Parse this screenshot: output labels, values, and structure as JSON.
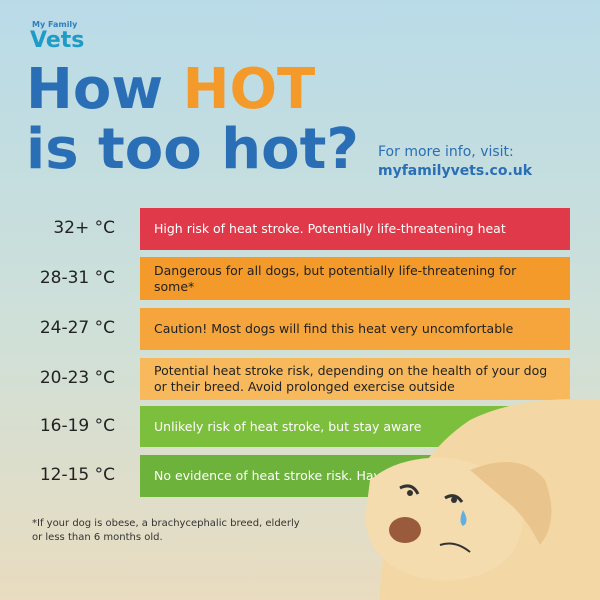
{
  "brand": {
    "small": "My Family",
    "name": "Vets"
  },
  "title": {
    "line1": "How",
    "hot": "HOT",
    "line2": "is too hot?"
  },
  "info": {
    "text": "For more info, visit:",
    "url": "myfamilyvets.co.uk"
  },
  "rows": [
    {
      "range": "32+ °C",
      "text": "High risk of heat stroke. Potentially life-threatening heat",
      "color": "#e03a4a",
      "text_color": "#ffffff"
    },
    {
      "range": "28-31 °C",
      "text": "Dangerous for all dogs, but potentially life-threatening for some*",
      "color": "#f39a2a",
      "text_color": "#222222"
    },
    {
      "range": "24-27 °C",
      "text": "Caution! Most dogs will find this heat very uncomfortable",
      "color": "#f6a53c",
      "text_color": "#222222"
    },
    {
      "range": "20-23 °C",
      "text": "Potential heat stroke risk, depending on the health of your dog or their breed. Avoid prolonged exercise outside",
      "color": "#f8b95c",
      "text_color": "#222222"
    },
    {
      "range": "16-19 °C",
      "text": "Unlikely risk of heat stroke, but stay aware",
      "color": "#7cbf3c",
      "text_color": "#ffffff"
    },
    {
      "range": "12-15 °C",
      "text": "No evidence of heat stroke risk. Have fun!",
      "color": "#6db23a",
      "text_color": "#ffffff"
    }
  ],
  "footnote": "*If your dog is obese, a brachycephalic breed, elderly or less than 6 months old."
}
